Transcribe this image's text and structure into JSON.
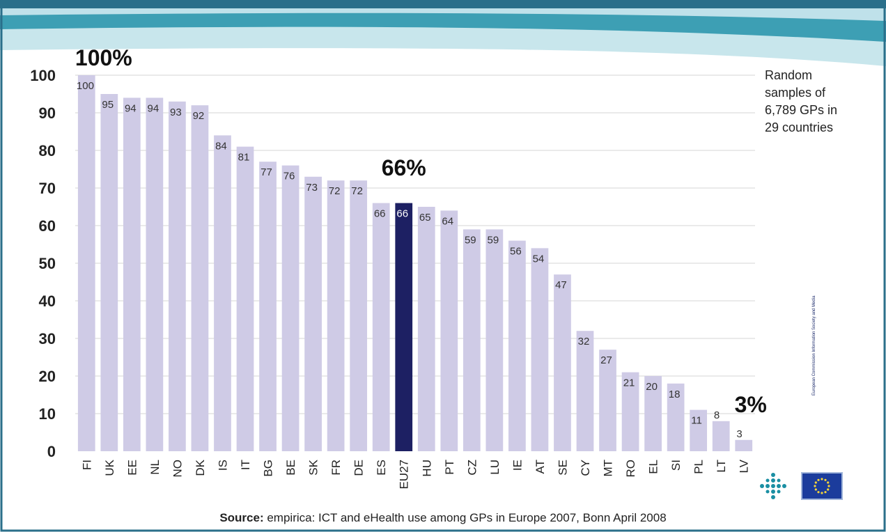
{
  "chart_data": {
    "type": "bar",
    "categories": [
      "FI",
      "UK",
      "EE",
      "NL",
      "NO",
      "DK",
      "IS",
      "IT",
      "BG",
      "BE",
      "SK",
      "FR",
      "DE",
      "ES",
      "EU27",
      "HU",
      "PT",
      "CZ",
      "LU",
      "IE",
      "AT",
      "SE",
      "CY",
      "MT",
      "RO",
      "EL",
      "SI",
      "PL",
      "LT",
      "LV"
    ],
    "values": [
      100,
      95,
      94,
      94,
      93,
      92,
      84,
      81,
      77,
      76,
      73,
      72,
      72,
      66,
      66,
      65,
      64,
      59,
      59,
      56,
      54,
      47,
      32,
      27,
      21,
      20,
      18,
      11,
      8,
      3
    ],
    "highlight_category": "EU27",
    "ylim": [
      0,
      100
    ],
    "yticks": [
      0,
      10,
      20,
      30,
      40,
      50,
      60,
      70,
      80,
      90,
      100
    ],
    "grid": true,
    "title": "",
    "xlabel": "",
    "ylabel": "",
    "annotations": [
      {
        "text": "100%",
        "category": "FI"
      },
      {
        "text": "66%",
        "category": "EU27"
      },
      {
        "text": "3%",
        "category": "LV"
      }
    ],
    "colors": {
      "bar": "#cfcbe6",
      "highlight": "#1d2063",
      "grid": "#d6d6d6"
    }
  },
  "side_note": "Random\nsamples of\n6,789 GPs in\n29 countries",
  "source": {
    "label": "Source:",
    "text": " empirica: ICT and eHealth use among GPs in Europe 2007, Bonn April 2008"
  },
  "logos": {
    "ec_text": "European Commission Information Society and Media",
    "icons": [
      "dots-logo-icon",
      "eu-flag-icon"
    ]
  },
  "colors": {
    "wave_dark": "#2f8ea3",
    "wave_light": "#bfe0e8",
    "frame": "#2a6f8a"
  }
}
